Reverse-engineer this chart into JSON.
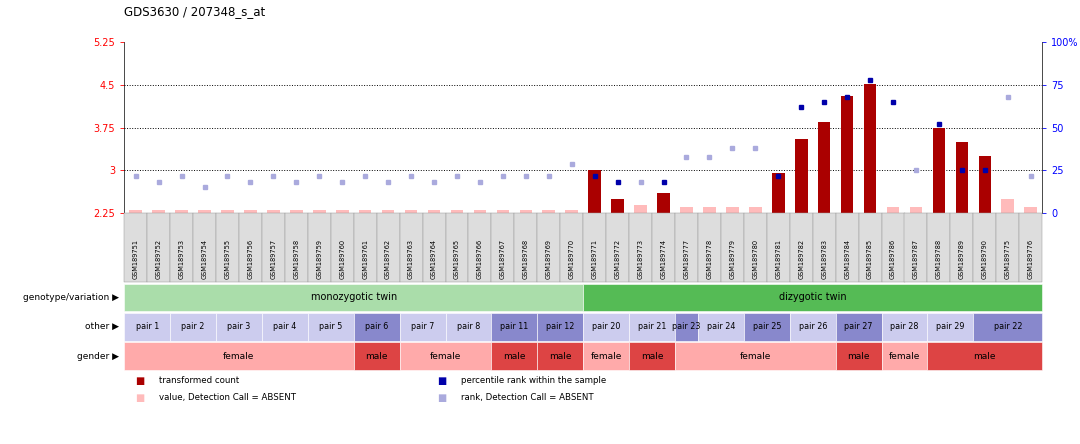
{
  "title": "GDS3630 / 207348_s_at",
  "samples": [
    "GSM189751",
    "GSM189752",
    "GSM189753",
    "GSM189754",
    "GSM189755",
    "GSM189756",
    "GSM189757",
    "GSM189758",
    "GSM189759",
    "GSM189760",
    "GSM189761",
    "GSM189762",
    "GSM189763",
    "GSM189764",
    "GSM189765",
    "GSM189766",
    "GSM189767",
    "GSM189768",
    "GSM189769",
    "GSM189770",
    "GSM189771",
    "GSM189772",
    "GSM189773",
    "GSM189774",
    "GSM189777",
    "GSM189778",
    "GSM189779",
    "GSM189780",
    "GSM189781",
    "GSM189782",
    "GSM189783",
    "GSM189784",
    "GSM189785",
    "GSM189786",
    "GSM189787",
    "GSM189788",
    "GSM189789",
    "GSM189790",
    "GSM189775",
    "GSM189776"
  ],
  "transformed_count": [
    2.3,
    2.3,
    2.3,
    2.3,
    2.3,
    2.3,
    2.3,
    2.3,
    2.3,
    2.3,
    2.3,
    2.3,
    2.3,
    2.3,
    2.3,
    2.3,
    2.3,
    2.3,
    2.3,
    2.3,
    3.0,
    2.5,
    2.4,
    2.6,
    2.35,
    2.35,
    2.35,
    2.35,
    2.95,
    3.55,
    3.85,
    4.3,
    4.52,
    2.35,
    2.35,
    3.75,
    3.5,
    3.25,
    2.5,
    2.35
  ],
  "percentile_rank": [
    22,
    18,
    22,
    15,
    22,
    18,
    22,
    18,
    22,
    18,
    22,
    18,
    22,
    18,
    22,
    18,
    22,
    22,
    22,
    29,
    22,
    18,
    18,
    18,
    33,
    33,
    38,
    38,
    22,
    62,
    65,
    68,
    78,
    65,
    25,
    52,
    25,
    25,
    68,
    22
  ],
  "absent_value": [
    true,
    true,
    true,
    true,
    true,
    true,
    true,
    true,
    true,
    true,
    true,
    true,
    true,
    true,
    true,
    true,
    true,
    true,
    true,
    true,
    false,
    false,
    true,
    false,
    true,
    true,
    true,
    true,
    false,
    false,
    false,
    false,
    false,
    true,
    true,
    false,
    false,
    false,
    true,
    true
  ],
  "absent_rank": [
    true,
    true,
    true,
    true,
    true,
    true,
    true,
    true,
    true,
    true,
    true,
    true,
    true,
    true,
    true,
    true,
    true,
    true,
    true,
    true,
    false,
    false,
    true,
    false,
    true,
    true,
    true,
    true,
    false,
    false,
    false,
    false,
    false,
    false,
    true,
    false,
    false,
    false,
    true,
    true
  ],
  "genotype_groups": [
    {
      "label": "monozygotic twin",
      "start": 0,
      "end": 20,
      "color": "#AADDAA"
    },
    {
      "label": "dizygotic twin",
      "start": 20,
      "end": 40,
      "color": "#55BB55"
    }
  ],
  "pair_groups": [
    {
      "label": "pair 1",
      "start": 0,
      "end": 2,
      "color": "#CCCCEE"
    },
    {
      "label": "pair 2",
      "start": 2,
      "end": 4,
      "color": "#CCCCEE"
    },
    {
      "label": "pair 3",
      "start": 4,
      "end": 6,
      "color": "#CCCCEE"
    },
    {
      "label": "pair 4",
      "start": 6,
      "end": 8,
      "color": "#CCCCEE"
    },
    {
      "label": "pair 5",
      "start": 8,
      "end": 10,
      "color": "#CCCCEE"
    },
    {
      "label": "pair 6",
      "start": 10,
      "end": 12,
      "color": "#8888CC"
    },
    {
      "label": "pair 7",
      "start": 12,
      "end": 14,
      "color": "#CCCCEE"
    },
    {
      "label": "pair 8",
      "start": 14,
      "end": 16,
      "color": "#CCCCEE"
    },
    {
      "label": "pair 11",
      "start": 16,
      "end": 18,
      "color": "#8888CC"
    },
    {
      "label": "pair 12",
      "start": 18,
      "end": 20,
      "color": "#8888CC"
    },
    {
      "label": "pair 20",
      "start": 20,
      "end": 22,
      "color": "#CCCCEE"
    },
    {
      "label": "pair 21",
      "start": 22,
      "end": 24,
      "color": "#CCCCEE"
    },
    {
      "label": "pair 23",
      "start": 24,
      "end": 25,
      "color": "#8888CC"
    },
    {
      "label": "pair 24",
      "start": 25,
      "end": 27,
      "color": "#CCCCEE"
    },
    {
      "label": "pair 25",
      "start": 27,
      "end": 29,
      "color": "#8888CC"
    },
    {
      "label": "pair 26",
      "start": 29,
      "end": 31,
      "color": "#CCCCEE"
    },
    {
      "label": "pair 27",
      "start": 31,
      "end": 33,
      "color": "#8888CC"
    },
    {
      "label": "pair 28",
      "start": 33,
      "end": 35,
      "color": "#CCCCEE"
    },
    {
      "label": "pair 29",
      "start": 35,
      "end": 37,
      "color": "#CCCCEE"
    },
    {
      "label": "pair 22",
      "start": 37,
      "end": 40,
      "color": "#8888CC"
    }
  ],
  "gender_groups": [
    {
      "label": "female",
      "start": 0,
      "end": 10,
      "color": "#FFAAAA"
    },
    {
      "label": "male",
      "start": 10,
      "end": 12,
      "color": "#DD4444"
    },
    {
      "label": "female",
      "start": 12,
      "end": 16,
      "color": "#FFAAAA"
    },
    {
      "label": "male",
      "start": 16,
      "end": 18,
      "color": "#DD4444"
    },
    {
      "label": "male",
      "start": 18,
      "end": 20,
      "color": "#DD4444"
    },
    {
      "label": "female",
      "start": 20,
      "end": 22,
      "color": "#FFAAAA"
    },
    {
      "label": "male",
      "start": 22,
      "end": 24,
      "color": "#DD4444"
    },
    {
      "label": "female",
      "start": 24,
      "end": 31,
      "color": "#FFAAAA"
    },
    {
      "label": "male",
      "start": 31,
      "end": 33,
      "color": "#DD4444"
    },
    {
      "label": "female",
      "start": 33,
      "end": 35,
      "color": "#FFAAAA"
    },
    {
      "label": "male",
      "start": 35,
      "end": 40,
      "color": "#DD4444"
    }
  ],
  "ylim": [
    2.25,
    5.25
  ],
  "yticks": [
    2.25,
    3.0,
    3.75,
    4.5,
    5.25
  ],
  "ytick_labels": [
    "2.25",
    "3",
    "3.75",
    "4.5",
    "5.25"
  ],
  "right_yticks_pct": [
    0,
    25,
    50,
    75,
    100
  ],
  "right_ytick_labels": [
    "0",
    "25",
    "50",
    "75",
    "100%"
  ],
  "dotted_lines": [
    3.0,
    3.75,
    4.5
  ],
  "bar_color": "#AA0000",
  "absent_bar_color": "#FFBBBB",
  "rank_color": "#0000AA",
  "absent_rank_color": "#AAAADD",
  "legend_items": [
    {
      "color": "#AA0000",
      "label": "transformed count"
    },
    {
      "color": "#0000AA",
      "label": "percentile rank within the sample"
    },
    {
      "color": "#FFBBBB",
      "label": "value, Detection Call = ABSENT"
    },
    {
      "color": "#AAAADD",
      "label": "rank, Detection Call = ABSENT"
    }
  ]
}
